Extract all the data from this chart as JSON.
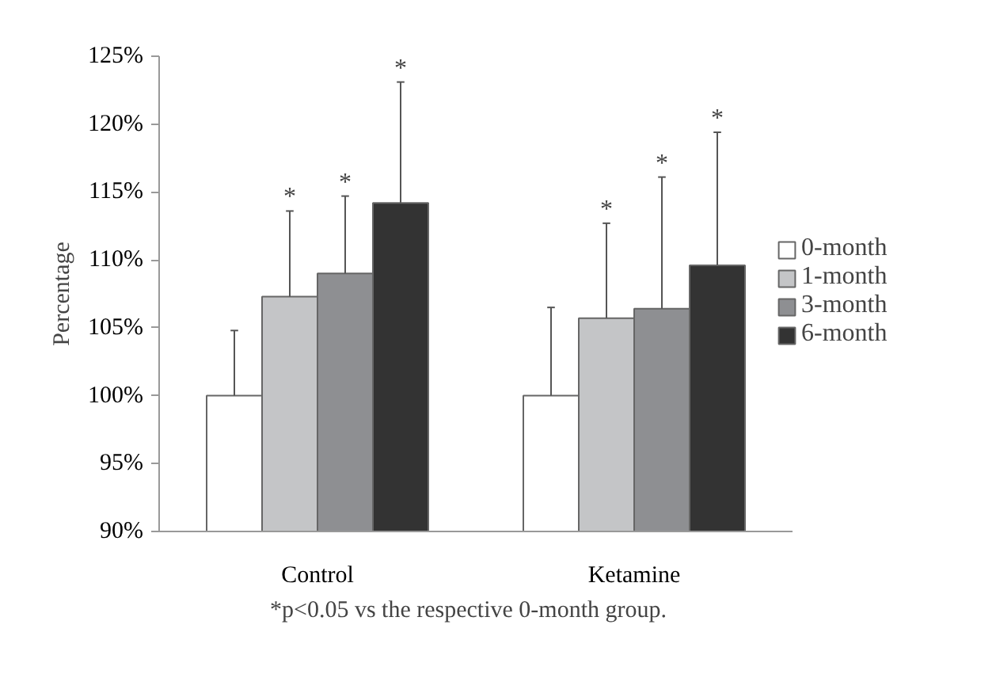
{
  "chart_data": {
    "type": "bar",
    "categories": [
      "Control",
      "Ketamine"
    ],
    "ylabel": "Percentage",
    "ylim": [
      90,
      125
    ],
    "yticks": [
      {
        "value": 90,
        "label": "90%"
      },
      {
        "value": 95,
        "label": "95%"
      },
      {
        "value": 100,
        "label": "100%"
      },
      {
        "value": 105,
        "label": "105%"
      },
      {
        "value": 110,
        "label": "110%"
      },
      {
        "value": 115,
        "label": "115%"
      },
      {
        "value": 120,
        "label": "120%"
      },
      {
        "value": 125,
        "label": "125%"
      }
    ],
    "series": [
      {
        "name": "0-month",
        "color": "#ffffff",
        "values": [
          100,
          100
        ],
        "errors": [
          [
            100,
            104.8
          ],
          [
            100,
            106.5
          ]
        ]
      },
      {
        "name": "1-month",
        "color": "#c4c5c7",
        "values": [
          107.3,
          105.7
        ],
        "errors": [
          [
            107.3,
            113.6
          ],
          [
            105.7,
            112.7
          ]
        ]
      },
      {
        "name": "3-month",
        "color": "#8e8f92",
        "values": [
          109.0,
          106.4
        ],
        "errors": [
          [
            109.0,
            114.7
          ],
          [
            106.4,
            116.1
          ]
        ]
      },
      {
        "name": "6-month",
        "color": "#333333",
        "values": [
          114.2,
          109.6
        ],
        "errors": [
          [
            114.2,
            123.1
          ],
          [
            109.6,
            119.4
          ]
        ]
      }
    ],
    "legend": "right",
    "grid": false,
    "annotations": [
      "*",
      "*",
      "*",
      "*",
      "*",
      "*",
      "*p<0.05 vs the respective 0-month group."
    ]
  }
}
